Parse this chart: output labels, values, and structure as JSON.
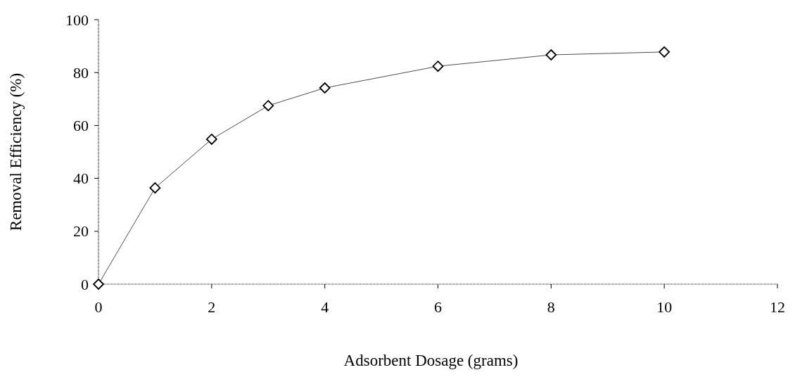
{
  "chart_data": {
    "type": "line",
    "xlabel": "Adsorbent Dosage (grams)",
    "ylabel": "Removal Efficiency (%)",
    "x": [
      0,
      1,
      2,
      3,
      4,
      6,
      8,
      10
    ],
    "series": [
      {
        "color": "#000000",
        "values": [
          0,
          36.4,
          54.8,
          67.5,
          74.2,
          82.4,
          86.7,
          87.8
        ]
      }
    ],
    "xlim": [
      0,
      12
    ],
    "xticks": [
      0,
      2,
      4,
      6,
      8,
      10,
      12
    ],
    "ylim": [
      0,
      100
    ],
    "yticks": [
      0,
      20,
      40,
      60,
      80,
      100
    ],
    "grid": false,
    "marker": "diamond",
    "line_style": "solid"
  }
}
